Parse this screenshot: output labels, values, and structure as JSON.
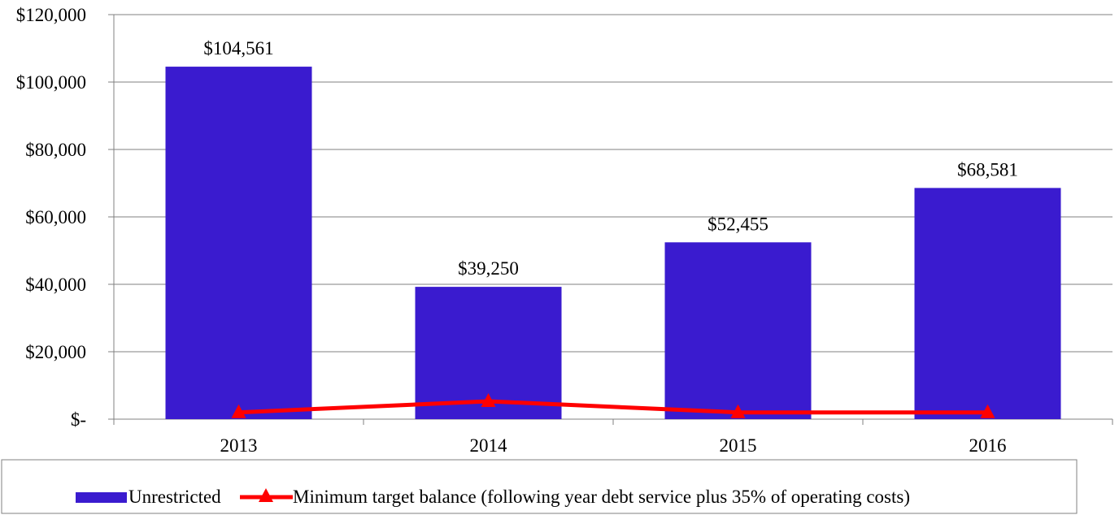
{
  "chart_data": {
    "type": "bar",
    "title": "",
    "xlabel": "",
    "ylabel": "",
    "categories": [
      "2013",
      "2014",
      "2015",
      "2016"
    ],
    "ylim": [
      0,
      120000
    ],
    "yticks": [
      0,
      20000,
      40000,
      60000,
      80000,
      100000,
      120000
    ],
    "ytick_labels": [
      "$-",
      "$20,000",
      "$40,000",
      "$60,000",
      "$80,000",
      "$100,000",
      "$120,000"
    ],
    "grid": true,
    "legend_position": "bottom",
    "series": [
      {
        "name": "Unrestricted",
        "kind": "bar",
        "color": "#3a1bcf",
        "values": [
          104561,
          39250,
          52455,
          68581
        ],
        "labels": [
          "$104,561",
          "$39,250",
          "$52,455",
          "$68,581"
        ]
      },
      {
        "name": "Minimum target balance (following year debt service plus 35% of operating costs)",
        "kind": "line",
        "marker": "triangle",
        "color": "#ff0000",
        "values": [
          2000,
          5300,
          2000,
          2000
        ]
      }
    ]
  }
}
